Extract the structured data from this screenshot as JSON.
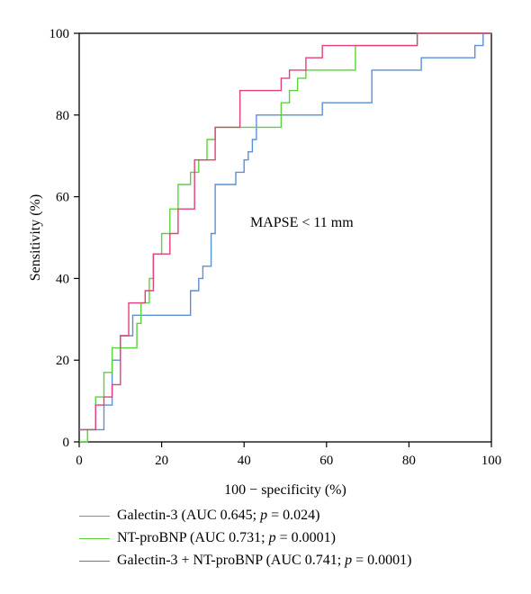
{
  "chart_data": {
    "type": "line",
    "step": true,
    "xlabel": "100 − specificity (%)",
    "ylabel": "Sensitivity (%)",
    "xlim": [
      0,
      100
    ],
    "ylim": [
      0,
      100
    ],
    "xticks": [
      0,
      20,
      40,
      60,
      80,
      100
    ],
    "yticks": [
      0,
      20,
      40,
      60,
      80,
      100
    ],
    "grid": false,
    "legend_position": "below-left",
    "annotation": "MAPSE < 11 mm",
    "series": [
      {
        "name": "Galectin-3 (AUC 0.645; p = 0.024)",
        "legend_prefix": "Galectin-3 (AUC 0.645; ",
        "legend_p": "p",
        "legend_suffix": " = 0.024)",
        "color": "#5b8fd6",
        "x": [
          0,
          6,
          6,
          8,
          8,
          10,
          10,
          13,
          13,
          27,
          27,
          29,
          29,
          30,
          30,
          32,
          32,
          33,
          33,
          35,
          35,
          38,
          38,
          40,
          40,
          41,
          41,
          42,
          42,
          43,
          43,
          59,
          59,
          67,
          67,
          71,
          71,
          83,
          83,
          96,
          96,
          98,
          98,
          100
        ],
        "y": [
          3,
          3,
          9,
          9,
          20,
          20,
          26,
          26,
          31,
          31,
          37,
          37,
          40,
          40,
          43,
          43,
          51,
          51,
          63,
          63,
          63,
          63,
          66,
          66,
          69,
          69,
          71,
          71,
          74,
          74,
          80,
          80,
          83,
          83,
          83,
          83,
          91,
          91,
          94,
          94,
          97,
          97,
          100,
          100
        ]
      },
      {
        "name": "NT-proBNP (AUC 0.731; p = 0.0001)",
        "legend_prefix": "NT-proBNP (AUC 0.731; ",
        "legend_p": "p",
        "legend_suffix": " = 0.0001)",
        "color": "#58d43a",
        "x": [
          0,
          2,
          2,
          4,
          4,
          6,
          6,
          8,
          8,
          10,
          10,
          14,
          14,
          15,
          15,
          17,
          17,
          18,
          18,
          20,
          20,
          22,
          22,
          24,
          24,
          27,
          27,
          29,
          29,
          31,
          31,
          33,
          33,
          35,
          35,
          49,
          49,
          51,
          51,
          53,
          53,
          55,
          55,
          67,
          67,
          82,
          82,
          100
        ],
        "y": [
          0,
          0,
          3,
          3,
          11,
          11,
          17,
          17,
          23,
          23,
          23,
          23,
          29,
          29,
          34,
          34,
          40,
          40,
          46,
          46,
          51,
          51,
          57,
          57,
          63,
          63,
          66,
          66,
          69,
          69,
          74,
          74,
          77,
          77,
          77,
          77,
          83,
          83,
          86,
          86,
          89,
          89,
          91,
          91,
          97,
          97,
          100,
          100
        ]
      },
      {
        "name": "Galectin-3 + NT-proBNP (AUC 0.741; p = 0.0001)",
        "legend_prefix": "Galectin-3 + NT-proBNP (AUC 0.741; ",
        "legend_p": "p",
        "legend_suffix": " = 0.0001)",
        "color": "#e0417a",
        "x": [
          0,
          4,
          4,
          6,
          6,
          8,
          8,
          10,
          10,
          12,
          12,
          16,
          16,
          18,
          18,
          22,
          22,
          24,
          24,
          28,
          28,
          33,
          33,
          39,
          39,
          49,
          49,
          51,
          51,
          55,
          55,
          59,
          59,
          65,
          65,
          82,
          82,
          86,
          86,
          100
        ],
        "y": [
          3,
          3,
          9,
          9,
          11,
          11,
          14,
          14,
          26,
          26,
          34,
          34,
          37,
          37,
          46,
          46,
          51,
          51,
          57,
          57,
          69,
          69,
          77,
          77,
          86,
          86,
          89,
          89,
          91,
          91,
          94,
          94,
          97,
          97,
          97,
          97,
          100,
          100,
          100,
          100
        ]
      }
    ]
  }
}
